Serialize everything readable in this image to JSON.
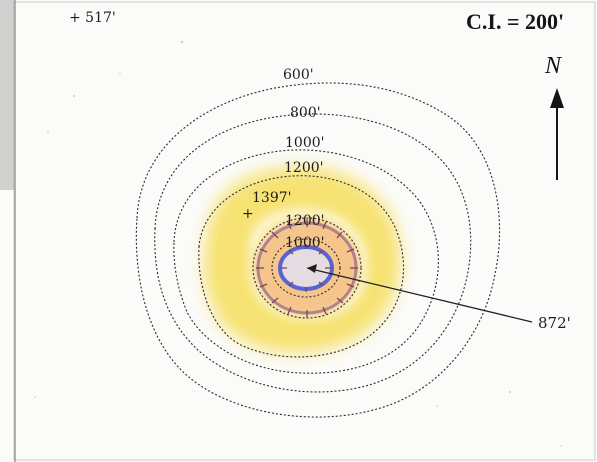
{
  "map": {
    "contour_interval": "C.I. = 200'",
    "north_label": "N",
    "spot_elevations": {
      "outer": "+ 517'",
      "rim": "+",
      "rim_value": "1397'",
      "crater_floor": "872'"
    },
    "contours": [
      "600'",
      "800'",
      "1000'",
      "1200'",
      "1200'",
      "1000'"
    ],
    "colors": {
      "yellow_band": "#f6dd55",
      "orange_band": "#ee9a57",
      "purple_ring": "#8e5a84",
      "blue_ring": "#3f4fd0",
      "contour_line": "#2b2b2b",
      "left_strip": "#c9c9c9"
    }
  }
}
